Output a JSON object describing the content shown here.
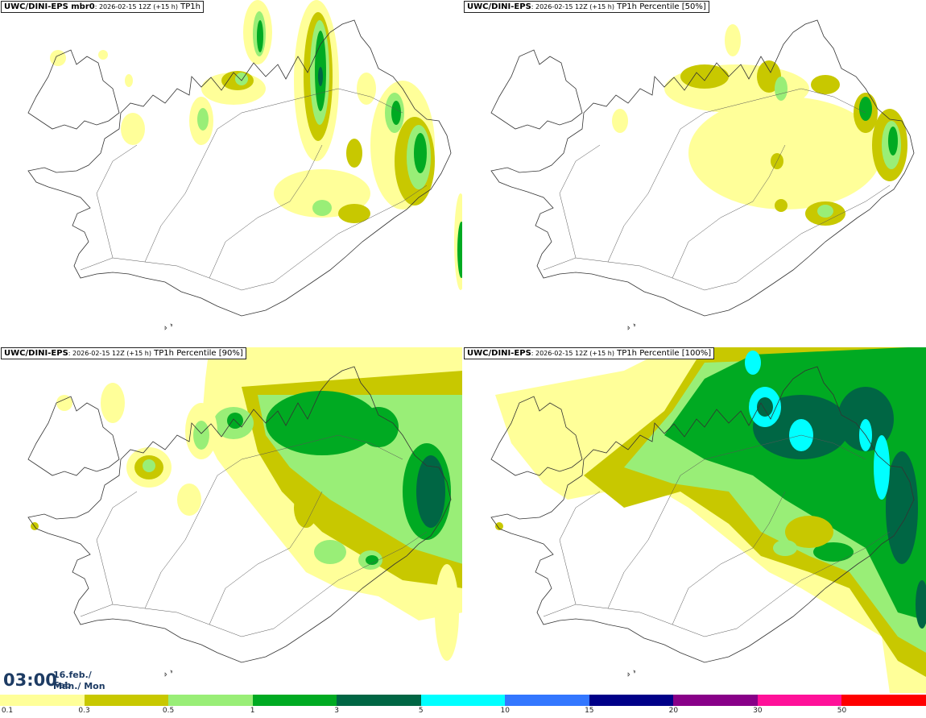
{
  "panels": [
    {
      "title_bold": "UWC/DINI-EPS mbr0",
      "title_meta": ": 2026-02-15 12Z (+15 h)",
      "title_field": "TP1h"
    },
    {
      "title_bold": "UWC/DINI-EPS",
      "title_meta": ": 2026-02-15 12Z (+15 h)",
      "title_field": "TP1h Percentile [50%]"
    },
    {
      "title_bold": "UWC/DINI-EPS",
      "title_meta": ": 2026-02-15 12Z (+15 h)",
      "title_field": "TP1h Percentile [90%]"
    },
    {
      "title_bold": "UWC/DINI-EPS",
      "title_meta": ": 2026-02-15 12Z (+15 h)",
      "title_field": "TP1h Percentile [100%]"
    }
  ],
  "clock": {
    "time": "03:00",
    "date_line1": "16.feb./ Feb",
    "date_line2": "Mán./ Mon"
  },
  "legend": {
    "colors": [
      "#ffff99",
      "#c8c800",
      "#99ee77",
      "#00aa22",
      "#006644",
      "#00ffff",
      "#3377ff",
      "#000088",
      "#880088",
      "#ff1199",
      "#ff0000"
    ],
    "labels": [
      "0.1",
      "0.3",
      "0.5",
      "1",
      "3",
      "5",
      "10",
      "15",
      "20",
      "30",
      "50"
    ]
  }
}
